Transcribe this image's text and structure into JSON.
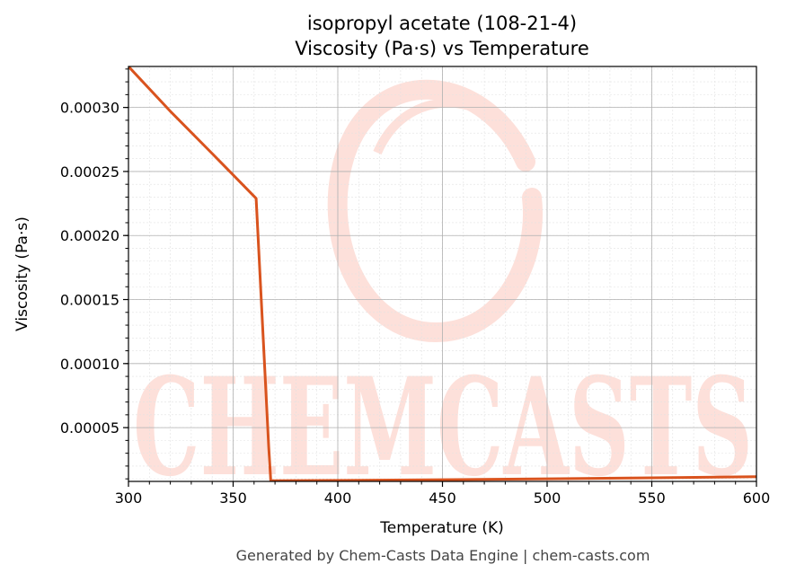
{
  "chart_data": {
    "type": "line",
    "title": "isopropyl acetate (108-21-4)",
    "subtitle": "Viscosity (Pa·s) vs Temperature",
    "xlabel": "Temperature (K)",
    "ylabel": "Viscosity (Pa·s)",
    "xlim": [
      300,
      600
    ],
    "ylim": [
      8e-06,
      0.000332
    ],
    "x_ticks": [
      300,
      350,
      400,
      450,
      500,
      550,
      600
    ],
    "x_tick_labels": [
      "300",
      "350",
      "400",
      "450",
      "500",
      "550",
      "600"
    ],
    "y_ticks": [
      5e-05,
      0.0001,
      0.00015,
      0.0002,
      0.00025,
      0.0003
    ],
    "y_tick_labels": [
      "0.00005",
      "0.00010",
      "0.00015",
      "0.00020",
      "0.00025",
      "0.00030"
    ],
    "grid": true,
    "series": [
      {
        "color": "#d9531e",
        "x": [
          300,
          320,
          340,
          361,
          367,
          368,
          400,
          450,
          500,
          550,
          600
        ],
        "y": [
          0.000332,
          0.000297,
          0.000264,
          0.000229,
          3.5e-05,
          8.5e-06,
          8.8e-06,
          9.3e-06,
          1e-05,
          1.08e-05,
          1.17e-05
        ]
      }
    ]
  },
  "watermark": {
    "text": "CHEMCASTS",
    "color": "#fde0da"
  },
  "footer": "Generated by Chem-Casts Data Engine | chem-casts.com"
}
